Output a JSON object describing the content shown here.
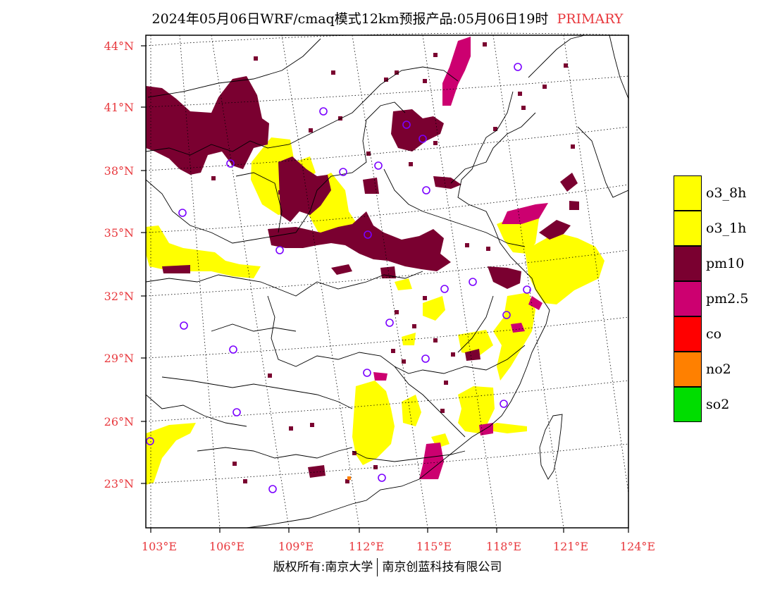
{
  "title": {
    "text": "2024年05月06日WRF/cmaq模式12km预报产品:05月06日19时",
    "tag": "PRIMARY"
  },
  "map": {
    "lat_labels": [
      "44°N",
      "41°N",
      "38°N",
      "35°N",
      "32°N",
      "29°N",
      "26°N",
      "23°N"
    ],
    "lon_labels": [
      "103°E",
      "106°E",
      "109°E",
      "112°E",
      "115°E",
      "118°E",
      "121°E",
      "124°E"
    ],
    "lat_range": [
      21,
      44.5
    ],
    "lon_range": [
      102.7,
      124
    ]
  },
  "legend": {
    "items": [
      {
        "label": "o3_8h",
        "color": "#ffff00"
      },
      {
        "label": "o3_1h",
        "color": "#ffff00"
      },
      {
        "label": "pm10",
        "color": "#7a0030"
      },
      {
        "label": "pm2.5",
        "color": "#cc0070"
      },
      {
        "label": "co",
        "color": "#ff0000"
      },
      {
        "label": "no2",
        "color": "#ff8000"
      },
      {
        "label": "so2",
        "color": "#00dd00"
      }
    ]
  },
  "footer": {
    "left": "版权所有:南京大学",
    "right": "南京创蓝科技有限公司"
  }
}
